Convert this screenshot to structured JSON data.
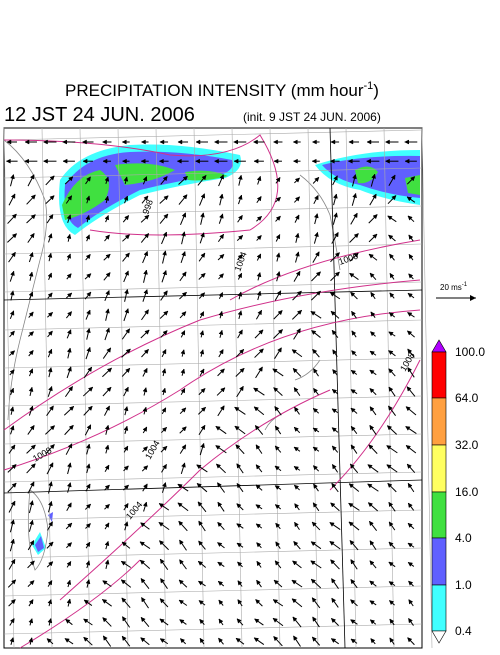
{
  "header": {
    "title": "PRECIPITATION INTENSITY (mm hour",
    "title_exp": "-1",
    "title_close": ")",
    "valid_time": "12 JST 24 JUN. 2006",
    "init_time": "(init. 9 JST 24 JUN. 2006)"
  },
  "wind_scale": {
    "label": "20 ms",
    "exp": "-1"
  },
  "colorbar": {
    "labels": [
      "100.0",
      "64.0",
      "32.0",
      "16.0",
      "4.0",
      "1.0",
      "0.4"
    ]
  },
  "isobar_labels": [
    "998",
    "1004",
    "1000",
    "1008",
    "1008",
    "1004",
    "1004"
  ]
}
